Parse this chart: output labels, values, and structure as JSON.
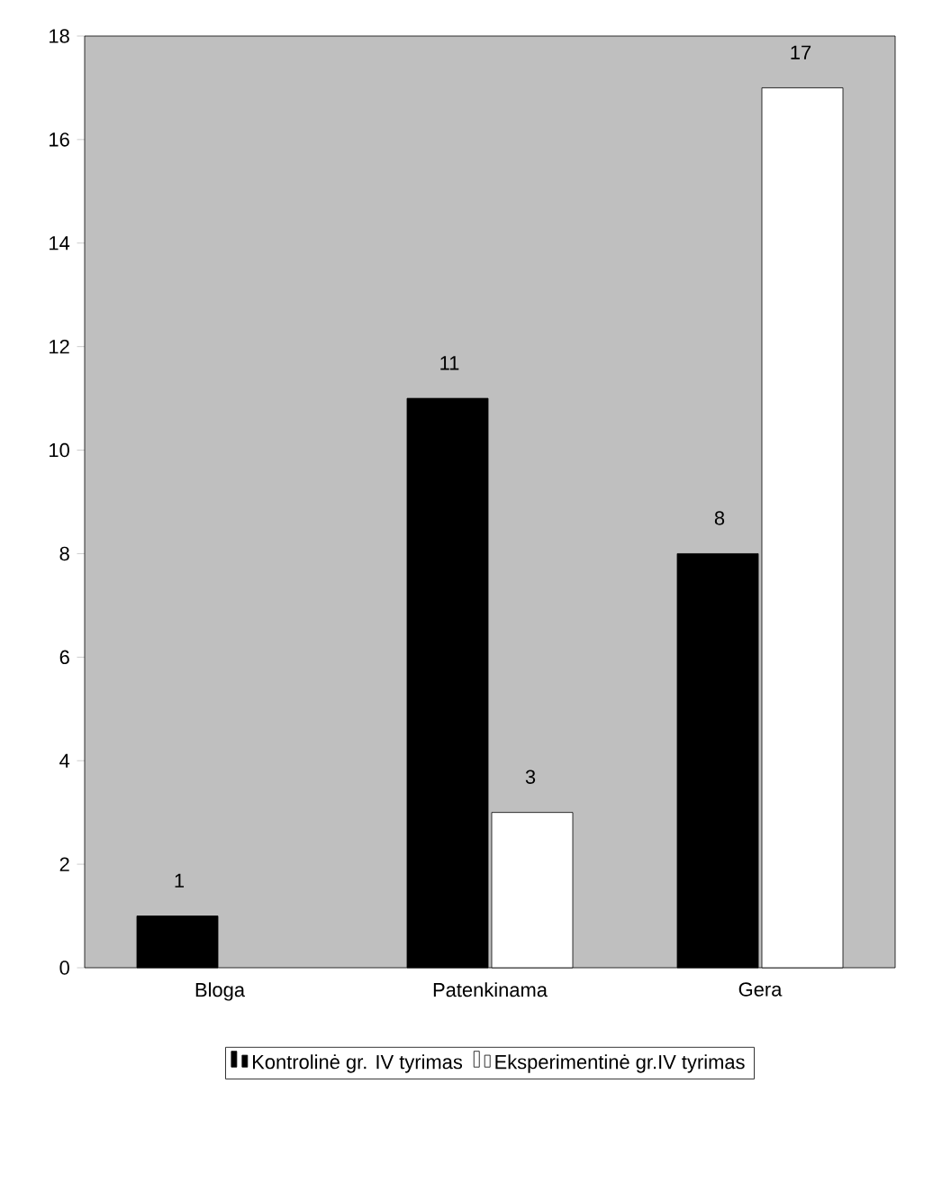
{
  "chart_data": {
    "type": "bar",
    "categories": [
      "Bloga",
      "Patenkinama",
      "Gera"
    ],
    "series": [
      {
        "name": "Kontrolinė gr. IV tyrimas",
        "color": "#000000",
        "values": [
          1,
          11,
          8
        ],
        "value_labels": [
          "1",
          "11",
          "8"
        ]
      },
      {
        "name": "Eksperimentinė gr.IV tyrimas",
        "color": "#ffffff",
        "values": [
          null,
          3,
          17
        ],
        "value_labels": [
          null,
          "3",
          "17"
        ]
      }
    ],
    "ylim": [
      0,
      18
    ],
    "yticks": [
      0,
      2,
      4,
      6,
      8,
      10,
      12,
      14,
      16,
      18
    ],
    "grid": false,
    "legend": "bottom"
  }
}
